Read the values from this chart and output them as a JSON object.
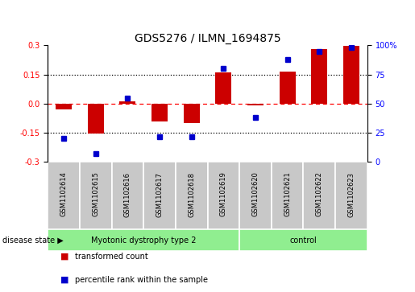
{
  "title": "GDS5276 / ILMN_1694875",
  "samples": [
    "GSM1102614",
    "GSM1102615",
    "GSM1102616",
    "GSM1102617",
    "GSM1102618",
    "GSM1102619",
    "GSM1102620",
    "GSM1102621",
    "GSM1102622",
    "GSM1102623"
  ],
  "transformed_count": [
    -0.03,
    -0.155,
    0.01,
    -0.09,
    -0.1,
    0.16,
    -0.01,
    0.165,
    0.28,
    0.295
  ],
  "percentile_rank_pct": [
    20,
    7,
    55,
    22,
    22,
    80,
    38,
    88,
    95,
    98
  ],
  "ylim_left": [
    -0.3,
    0.3
  ],
  "ylim_right": [
    0,
    100
  ],
  "yticks_left": [
    -0.3,
    -0.15,
    0.0,
    0.15,
    0.3
  ],
  "yticks_right": [
    0,
    25,
    50,
    75,
    100
  ],
  "ytick_labels_right": [
    "0",
    "25",
    "50",
    "75",
    "100%"
  ],
  "bar_color": "#cc0000",
  "dot_color": "#0000cc",
  "group1_label": "Myotonic dystrophy type 2",
  "group2_label": "control",
  "group1_indices": [
    0,
    1,
    2,
    3,
    4,
    5
  ],
  "group2_indices": [
    6,
    7,
    8,
    9
  ],
  "group1_color": "#90ee90",
  "group2_color": "#90ee90",
  "disease_state_label": "disease state",
  "legend_bar_label": "transformed count",
  "legend_dot_label": "percentile rank within the sample",
  "bar_width": 0.5,
  "label_area_color": "#c8c8c8",
  "label_border_color": "#ffffff"
}
